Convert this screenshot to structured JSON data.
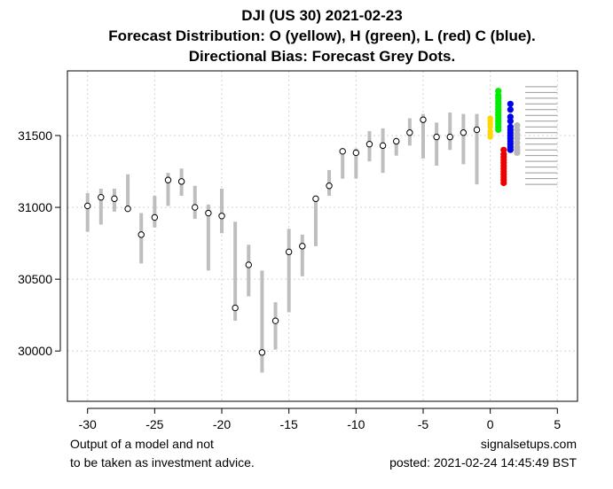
{
  "chart_data": {
    "type": "range-dot",
    "title_lines": [
      "DJI (US 30) 2021-02-23",
      "Forecast Distribution: O (yellow), H (green), L (red) C (blue).",
      "Directional Bias: Forecast Grey Dots."
    ],
    "xlabel": "",
    "ylabel": "",
    "xlim": [
      -31.5,
      6.5
    ],
    "ylim": [
      29650,
      31950
    ],
    "x_ticks": [
      -30,
      -25,
      -20,
      -15,
      -10,
      -5,
      0,
      5
    ],
    "y_ticks": [
      30000,
      30500,
      31000,
      31500
    ],
    "grid": true,
    "history": [
      {
        "x": -30,
        "low": 30830,
        "high": 31100,
        "close": 31010
      },
      {
        "x": -29,
        "low": 30880,
        "high": 31130,
        "close": 31070
      },
      {
        "x": -28,
        "low": 30970,
        "high": 31130,
        "close": 31060
      },
      {
        "x": -27,
        "low": 30980,
        "high": 31230,
        "close": 30990
      },
      {
        "x": -26,
        "low": 30610,
        "high": 30960,
        "close": 30810
      },
      {
        "x": -25,
        "low": 30860,
        "high": 31080,
        "close": 30930
      },
      {
        "x": -24,
        "low": 31010,
        "high": 31240,
        "close": 31190
      },
      {
        "x": -23,
        "low": 31080,
        "high": 31270,
        "close": 31180
      },
      {
        "x": -22,
        "low": 30920,
        "high": 31150,
        "close": 31000
      },
      {
        "x": -21,
        "low": 30560,
        "high": 31020,
        "close": 30960
      },
      {
        "x": -20,
        "low": 30820,
        "high": 31130,
        "close": 30940
      },
      {
        "x": -19,
        "low": 30210,
        "high": 30900,
        "close": 30300
      },
      {
        "x": -18,
        "low": 30380,
        "high": 30740,
        "close": 30600
      },
      {
        "x": -17,
        "low": 29850,
        "high": 30560,
        "close": 29990
      },
      {
        "x": -16,
        "low": 30010,
        "high": 30340,
        "close": 30210
      },
      {
        "x": -15,
        "low": 30270,
        "high": 30850,
        "close": 30690
      },
      {
        "x": -14,
        "low": 30520,
        "high": 30810,
        "close": 30730
      },
      {
        "x": -13,
        "low": 30730,
        "high": 31060,
        "close": 31060
      },
      {
        "x": -12,
        "low": 31080,
        "high": 31260,
        "close": 31150
      },
      {
        "x": -11,
        "low": 31200,
        "high": 31400,
        "close": 31390
      },
      {
        "x": -10,
        "low": 31200,
        "high": 31410,
        "close": 31380
      },
      {
        "x": -9,
        "low": 31320,
        "high": 31530,
        "close": 31440
      },
      {
        "x": -8,
        "low": 31240,
        "high": 31550,
        "close": 31430
      },
      {
        "x": -7,
        "low": 31360,
        "high": 31480,
        "close": 31460
      },
      {
        "x": -6,
        "low": 31430,
        "high": 31620,
        "close": 31520
      },
      {
        "x": -5,
        "low": 31340,
        "high": 31650,
        "close": 31610
      },
      {
        "x": -4,
        "low": 31290,
        "high": 31590,
        "close": 31490
      },
      {
        "x": -3,
        "low": 31400,
        "high": 31660,
        "close": 31490
      },
      {
        "x": -2,
        "low": 31300,
        "high": 31650,
        "close": 31520
      },
      {
        "x": -1,
        "low": 31160,
        "high": 31650,
        "close": 31540
      }
    ],
    "forecast": {
      "open": {
        "x": 0,
        "color": "#ffd700",
        "values": [
          31490,
          31510,
          31530,
          31560,
          31580,
          31600,
          31620
        ]
      },
      "high": {
        "x": 0.6,
        "color": "#00ee00",
        "values": [
          31540,
          31560,
          31580,
          31600,
          31620,
          31640,
          31660,
          31680,
          31700,
          31720,
          31740,
          31760,
          31780,
          31810
        ]
      },
      "low": {
        "x": 1.0,
        "color": "#ee0000",
        "values": [
          31170,
          31190,
          31210,
          31230,
          31250,
          31270,
          31290,
          31310,
          31330,
          31350,
          31370,
          31400
        ]
      },
      "close": {
        "x": 1.5,
        "color": "#0000ee",
        "values": [
          31400,
          31420,
          31440,
          31460,
          31480,
          31500,
          31520,
          31540,
          31560,
          31600,
          31630,
          31680,
          31720
        ]
      },
      "bias": {
        "x": 2.0,
        "color": "#b8b8b8",
        "values": [
          31380,
          31400,
          31420,
          31450,
          31480,
          31510,
          31540,
          31570
        ]
      },
      "levels": {
        "x_from": 2.6,
        "x_to": 5.0,
        "color": "#999999",
        "values": [
          31160,
          31200,
          31240,
          31280,
          31320,
          31360,
          31400,
          31440,
          31480,
          31520,
          31560,
          31600,
          31640,
          31680,
          31720,
          31760,
          31800,
          31840
        ]
      }
    }
  },
  "footer": {
    "disclaimer_line1": "Output of a model and not",
    "disclaimer_line2": "to be taken as investment advice.",
    "site": "signalsetups.com",
    "posted": "posted: 2021-02-24 14:45:49 BST"
  },
  "colors": {
    "history_bar": "#bebebe",
    "grid": "#d3d3d3",
    "axis": "#000000"
  }
}
